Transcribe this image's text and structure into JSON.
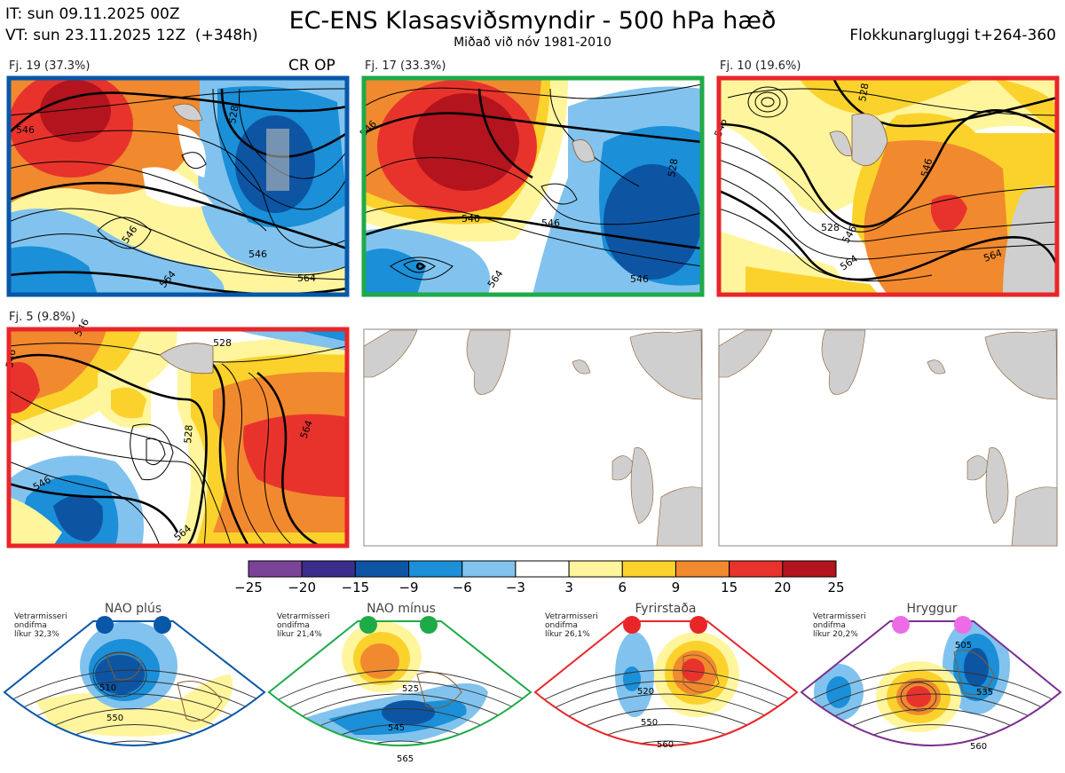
{
  "header": {
    "init_time": "IT: sun 09.11.2025 00Z",
    "valid_time": "VT: sun 23.11.2025 12Z  (+348h)",
    "title": "EC-ENS Klasasviðsmyndir - 500 hPa hæð",
    "subtitle": "Miðað við nóv 1981-2010",
    "window": "Flokkunargluggi t+264-360"
  },
  "colors": {
    "frame_blue": "#0857a8",
    "frame_green": "#1faa48",
    "frame_red": "#e8262a",
    "frame_purple": "#7b2f8e",
    "land_gray": "#cfcfcf",
    "coast_brown": "#8b5a2b"
  },
  "clusters": [
    {
      "label": "Fj. 19 (37.3%)",
      "tag": "CR OP",
      "frame": "blue",
      "contours": [
        "546",
        "528",
        "546",
        "564",
        "546",
        "564"
      ]
    },
    {
      "label": "Fj. 17 (33.3%)",
      "tag": "",
      "frame": "green",
      "contours": [
        "546",
        "528",
        "540",
        "546",
        "564",
        "546"
      ]
    },
    {
      "label": "Fj. 10 (19.6%)",
      "tag": "",
      "frame": "red",
      "contours": [
        "546",
        "528",
        "546",
        "564",
        "528",
        "546",
        "564"
      ]
    },
    {
      "label": "Fj. 5 (9.8%)",
      "tag": "",
      "frame": "red",
      "contours": [
        "546",
        "528",
        "546",
        "528",
        "564",
        "546",
        "564"
      ]
    }
  ],
  "regimes": [
    {
      "name": "NAO plús",
      "note_lines": [
        "Vetrarmisseri",
        "ondifma",
        "líkur 32,3%"
      ],
      "frame": "blue",
      "dot": "#0857a8",
      "contours": [
        "510",
        "550"
      ]
    },
    {
      "name": "NAO mínus",
      "note_lines": [
        "Vetrarmisseri",
        "ondifma",
        "líkur 21,4%"
      ],
      "frame": "green",
      "dot": "#1faa48",
      "contours": [
        "525",
        "545",
        "565"
      ]
    },
    {
      "name": "Fyrirstaða",
      "note_lines": [
        "Vetrarmisseri",
        "ondifma",
        "líkur 26,1%"
      ],
      "frame": "red",
      "dot": "#e8262a",
      "contours": [
        "520",
        "550",
        "560"
      ]
    },
    {
      "name": "Hryggur",
      "note_lines": [
        "Vetrarmisseri",
        "ondifma",
        "líkur 20,2%"
      ],
      "frame": "purple",
      "dot": "#ee6be6",
      "contours": [
        "505",
        "535",
        "560"
      ]
    }
  ],
  "chart_data": {
    "type": "heatmap",
    "title": "EC-ENS Klasasviðsmyndir - 500 hPa hæð",
    "colorbar": {
      "ticks": [
        "−25",
        "−20",
        "−15",
        "−9",
        "−6",
        "−3",
        "3",
        "6",
        "9",
        "15",
        "20",
        "25"
      ],
      "colors": [
        "#7b4398",
        "#3b2d8c",
        "#0d55a3",
        "#1b8fd8",
        "#81c3ee",
        "#ffffff",
        "#fff59d",
        "#fbd22c",
        "#f1892e",
        "#e8332c",
        "#b3141d"
      ]
    }
  }
}
